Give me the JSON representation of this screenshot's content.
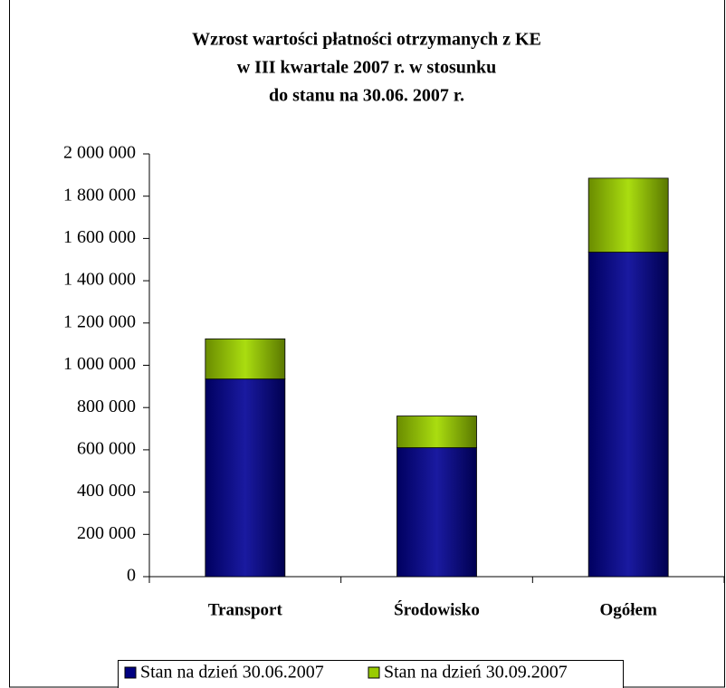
{
  "chart_data": {
    "type": "stacked_bar",
    "title": [
      "Wzrost wartości płatności otrzymanych z KE",
      "w III kwartale 2007 r. w stosunku",
      "do stanu na 30.06. 2007 r."
    ],
    "categories": [
      "Transport",
      "Środowisko",
      "Ogółem"
    ],
    "series": [
      {
        "name": "Stan na dzień 30.06.2007",
        "color": "#000080",
        "values": [
          935000,
          610000,
          1535000
        ]
      },
      {
        "name": "Stan na dzień 30.09.2007",
        "color": "#99cc00",
        "values": [
          190000,
          150000,
          350000
        ]
      }
    ],
    "ylim": [
      0,
      2000000
    ],
    "yticks": [
      0,
      {
        "value": 200000,
        "label": "200 000"
      },
      {
        "value": 400000,
        "label": "400 000"
      },
      {
        "value": 600000,
        "label": "600 000"
      },
      {
        "value": 800000,
        "label": "800 000"
      },
      {
        "value": 1000000,
        "label": "1 000 000"
      },
      {
        "value": 1200000,
        "label": "1 200 000"
      },
      {
        "value": 1400000,
        "label": "1 400 000"
      },
      {
        "value": 1600000,
        "label": "1 600 000"
      },
      {
        "value": 1800000,
        "label": "1 800 000"
      },
      {
        "value": 2000000,
        "label": "2 000 000"
      }
    ],
    "legend": "bottom"
  }
}
